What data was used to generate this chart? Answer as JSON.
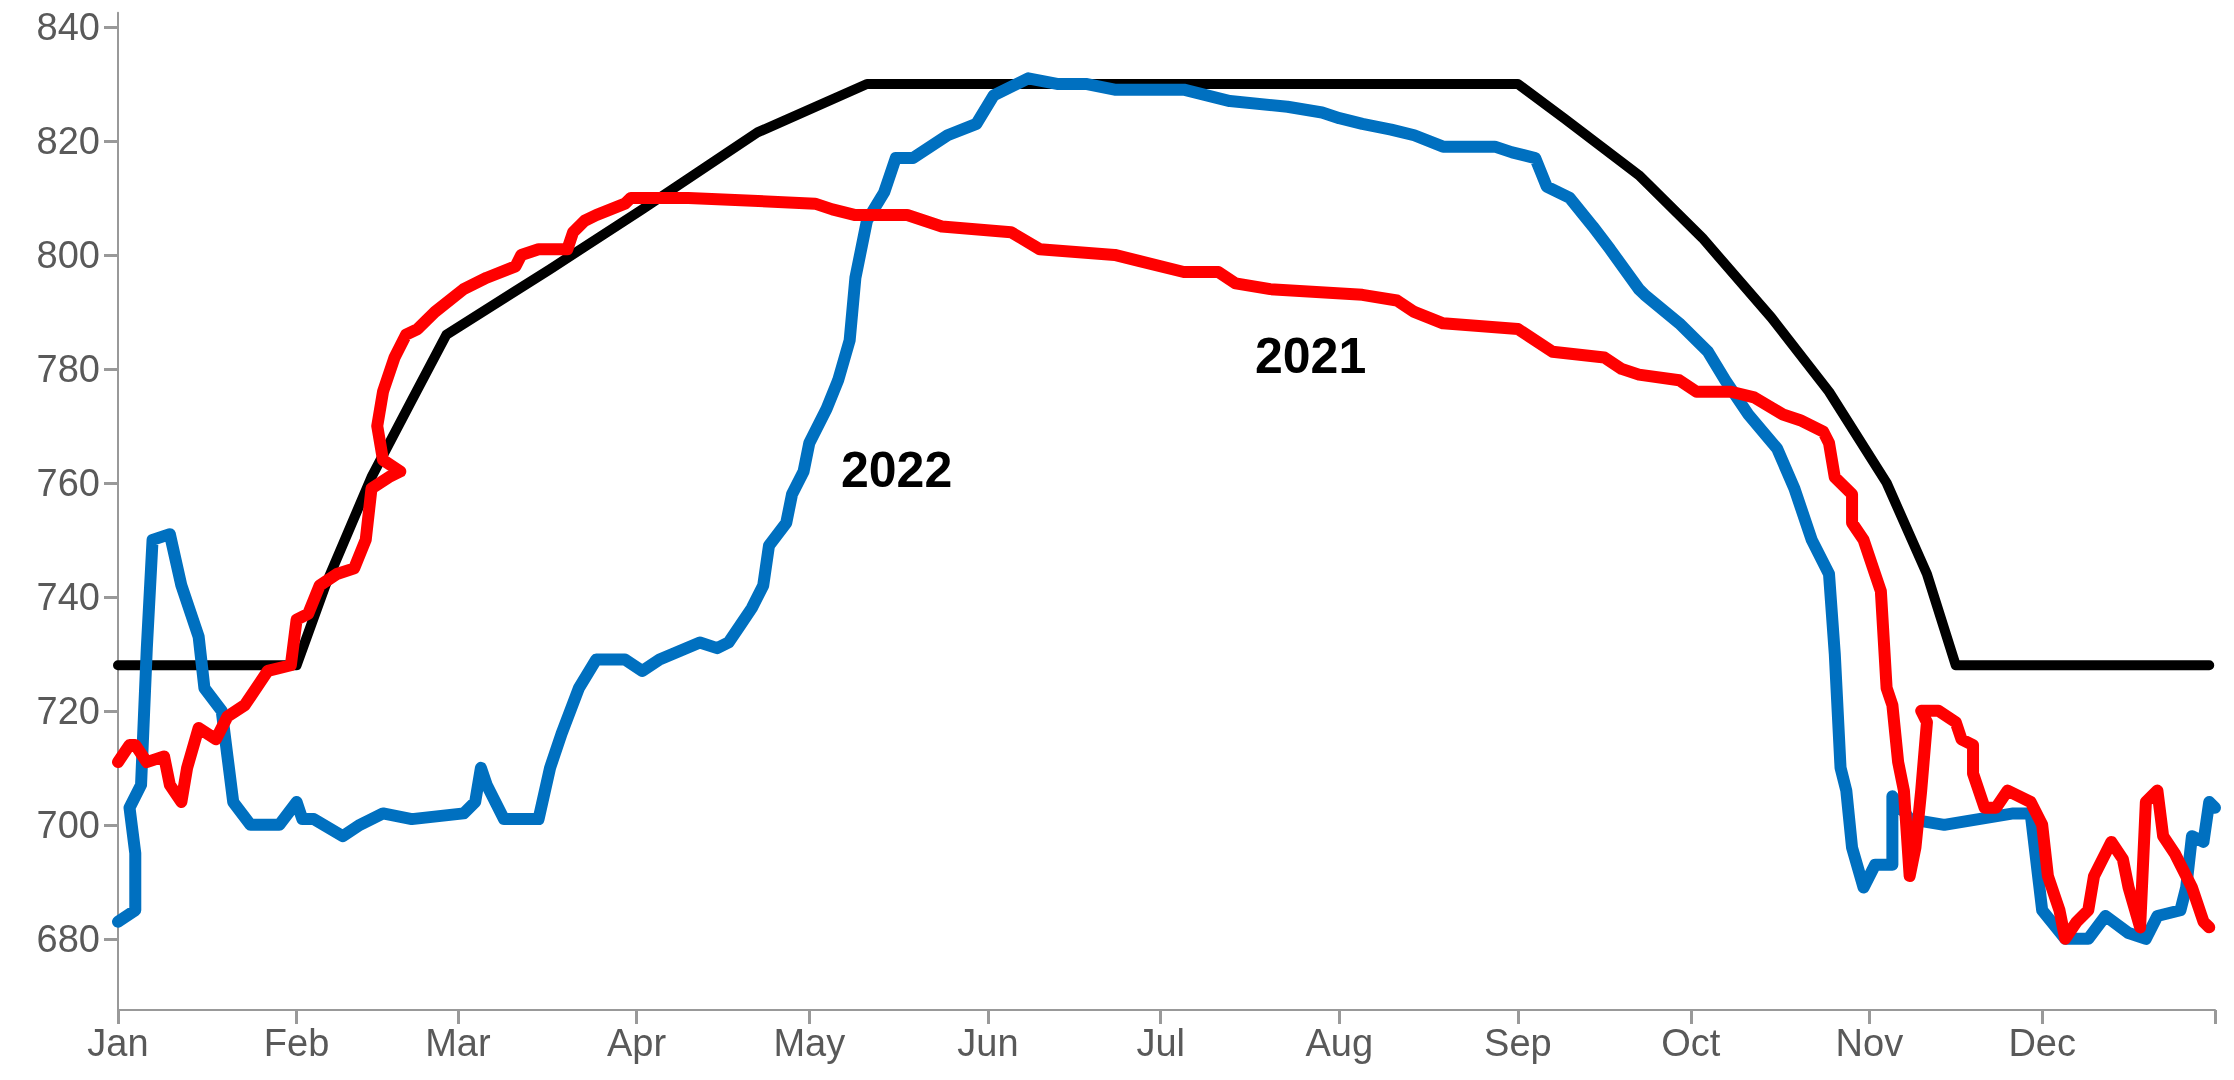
{
  "chart_data": {
    "type": "line",
    "marker": "none",
    "xlim": [
      "--01-01",
      "--12-31"
    ],
    "ylim": [
      667.5,
      842.5
    ],
    "yticks": [
      680,
      700,
      720,
      740,
      760,
      780,
      800,
      820,
      840
    ],
    "xticks": [
      {
        "value": "--01-01",
        "label": "Jan"
      },
      {
        "value": "--02-01",
        "label": "Feb"
      },
      {
        "value": "--03-01",
        "label": "Mar"
      },
      {
        "value": "--04-01",
        "label": "Apr"
      },
      {
        "value": "--05-01",
        "label": "May"
      },
      {
        "value": "--06-01",
        "label": "Jun"
      },
      {
        "value": "--07-01",
        "label": "Jul"
      },
      {
        "value": "--08-01",
        "label": "Aug"
      },
      {
        "value": "--09-01",
        "label": "Sep"
      },
      {
        "value": "--10-01",
        "label": "Oct"
      },
      {
        "value": "--11-01",
        "label": "Nov"
      },
      {
        "value": "--12-01",
        "label": "Dec"
      },
      {
        "value": "--12-31",
        "label": null
      }
    ],
    "series": [
      {
        "color": "#000000",
        "x": [
          "--01-01",
          "--02-01",
          "--02-06",
          "--02-14",
          "--02-21",
          "--02-27",
          "--03-17",
          "--04-02",
          "--04-22",
          "--05-11",
          "--09-01",
          "--09-09",
          "--09-22",
          "--10-03",
          "--10-15",
          "--10-25",
          "--11-04",
          "--11-11",
          "--11-16",
          "--12-30"
        ],
        "values": [
          728,
          728,
          742,
          761,
          774.5,
          786,
          797.5,
          808,
          821.5,
          830,
          830,
          824,
          814,
          803,
          789,
          776,
          760,
          744,
          728,
          728
        ]
      },
      {
        "name": "2022",
        "color": "#0070c0",
        "x": [
          "--01-01",
          "--01-04",
          "--01-04",
          "--01-03",
          "--01-05",
          "--01-06",
          "--01-07",
          "--01-10",
          "--01-12",
          "--01-15",
          "--01-16",
          "--01-19",
          "--01-20",
          "--01-21",
          "--01-24",
          "--01-29",
          "--02-01",
          "--02-02",
          "--02-04",
          "--02-09",
          "--02-12",
          "--02-16",
          "--02-21",
          "--03-02",
          "--03-04",
          "--03-05",
          "--03-06",
          "--03-09",
          "--03-15",
          "--03-17",
          "--03-19",
          "--03-22",
          "--03-25",
          "--03-30",
          "--04-02",
          "--04-05",
          "--04-12",
          "--04-15",
          "--04-17",
          "--04-19",
          "--04-21",
          "--04-23",
          "--04-24",
          "--04-27",
          "--04-28",
          "--04-30",
          "--05-01",
          "--05-04",
          "--05-06",
          "--05-08",
          "--05-09",
          "--05-11",
          "--05-14",
          "--05-16",
          "--05-19",
          "--05-25",
          "--05-30",
          "--06-02",
          "--06-08",
          "--06-13",
          "--06-18",
          "--06-23",
          "--07-05",
          "--07-13",
          "--07-23",
          "--07-29",
          "--08-01",
          "--08-05",
          "--08-10",
          "--08-14",
          "--08-19",
          "--08-28",
          "--08-31",
          "--09-04",
          "--09-06",
          "--09-10",
          "--09-14",
          "--09-17",
          "--09-22",
          "--09-23",
          "--09-29",
          "--10-04",
          "--10-07",
          "--10-11",
          "--10-16",
          "--10-19",
          "--10-22",
          "--10-25",
          "--10-26",
          "--10-27",
          "--10-28",
          "--10-29",
          "--10-31",
          "--11-02",
          "--11-05",
          "--11-05",
          "--11-08",
          "--11-14",
          "--11-26",
          "--11-29",
          "--12-01",
          "--12-05",
          "--12-09",
          "--12-12",
          "--12-16",
          "--12-19",
          "--12-21",
          "--12-25",
          "--12-26",
          "--12-27",
          "--12-29",
          "--12-30",
          "--12-31"
        ],
        "values": [
          683,
          685,
          695,
          703,
          707,
          731,
          750,
          751,
          742,
          733,
          724,
          720,
          712,
          704,
          700,
          700,
          704,
          701,
          701,
          698,
          700,
          702,
          701,
          702,
          704,
          710,
          707,
          701,
          701,
          710,
          716,
          724,
          729,
          729,
          727,
          729,
          732,
          731,
          732,
          735,
          738,
          742,
          749,
          753,
          758,
          762,
          767,
          773,
          778,
          785,
          796,
          806,
          811,
          817,
          817,
          821,
          823,
          828,
          831,
          830,
          830,
          829,
          829,
          827,
          826,
          825,
          824,
          823,
          822,
          821,
          819,
          819,
          818,
          817,
          812,
          810,
          805,
          801,
          794,
          793,
          788,
          783,
          778,
          772,
          766,
          759,
          750,
          744,
          730,
          710,
          706,
          696,
          689,
          693,
          693,
          705,
          701,
          700,
          702,
          702,
          685,
          680,
          680,
          684,
          681,
          680,
          684,
          685,
          689,
          698,
          697,
          704,
          703
        ]
      },
      {
        "name": "2021",
        "color": "#ff0000",
        "x": [
          "--01-01",
          "--01-03",
          "--01-04",
          "--01-06",
          "--01-09",
          "--01-10",
          "--01-12",
          "--01-13",
          "--01-15",
          "--01-18",
          "--01-20",
          "--01-23",
          "--01-27",
          "--01-31",
          "--02-01",
          "--02-03",
          "--02-05",
          "--02-08",
          "--02-11",
          "--02-13",
          "--02-14",
          "--02-17",
          "--02-19",
          "--02-16",
          "--02-15",
          "--02-16",
          "--02-18",
          "--02-20",
          "--02-22",
          "--02-25",
          "--03-02",
          "--03-06",
          "--03-11",
          "--03-12",
          "--03-15",
          "--03-20",
          "--03-21",
          "--03-23",
          "--03-25",
          "--03-30",
          "--03-31",
          "--04-10",
          "--05-02",
          "--05-05",
          "--05-09",
          "--05-18",
          "--05-24",
          "--06-05",
          "--06-10",
          "--06-23",
          "--06-27",
          "--07-05",
          "--07-11",
          "--07-14",
          "--07-20",
          "--08-05",
          "--08-11",
          "--08-14",
          "--08-19",
          "--09-01",
          "--09-07",
          "--09-16",
          "--09-19",
          "--09-22",
          "--09-29",
          "--10-02",
          "--10-08",
          "--10-12",
          "--10-17",
          "--10-20",
          "--10-24",
          "--10-25",
          "--10-26",
          "--10-29",
          "--10-29",
          "--10-31",
          "--11-02",
          "--11-03",
          "--11-04",
          "--11-05",
          "--11-06",
          "--11-07",
          "--11-08",
          "--11-09",
          "--11-10",
          "--11-11",
          "--11-10",
          "--11-13",
          "--11-16",
          "--11-17",
          "--11-19",
          "--11-19",
          "--11-21",
          "--11-23",
          "--11-25",
          "--11-29",
          "--12-01",
          "--12-02",
          "--12-04",
          "--12-05",
          "--12-07",
          "--12-09",
          "--12-10",
          "--12-13",
          "--12-15",
          "--12-16",
          "--12-18",
          "--12-19",
          "--12-21",
          "--12-22",
          "--12-24",
          "--12-27",
          "--12-29",
          "--12-30"
        ],
        "values": [
          711,
          714,
          714,
          711,
          712,
          707,
          704,
          710,
          717,
          715,
          719,
          721,
          727,
          728,
          736,
          737,
          742,
          744,
          745,
          750,
          759,
          761,
          762,
          764,
          770,
          776,
          782,
          786,
          787,
          790,
          794,
          796,
          798,
          800,
          801,
          801,
          804,
          806,
          807,
          809,
          810,
          810,
          809,
          808,
          807,
          807,
          805,
          804,
          801,
          800,
          799,
          797,
          797,
          795,
          794,
          793,
          792,
          790,
          788,
          787,
          783,
          782,
          780,
          779,
          778,
          776,
          776,
          775,
          772,
          771,
          769,
          767,
          761,
          758,
          753,
          750,
          744,
          741,
          724,
          721,
          711,
          706,
          691,
          696,
          706,
          718,
          720,
          720,
          718,
          715,
          714,
          709,
          703,
          703,
          706,
          704,
          700,
          691,
          685,
          680,
          683,
          685,
          691,
          697,
          694,
          689,
          682,
          704,
          706,
          698,
          695,
          689,
          683,
          682
        ]
      }
    ]
  }
}
